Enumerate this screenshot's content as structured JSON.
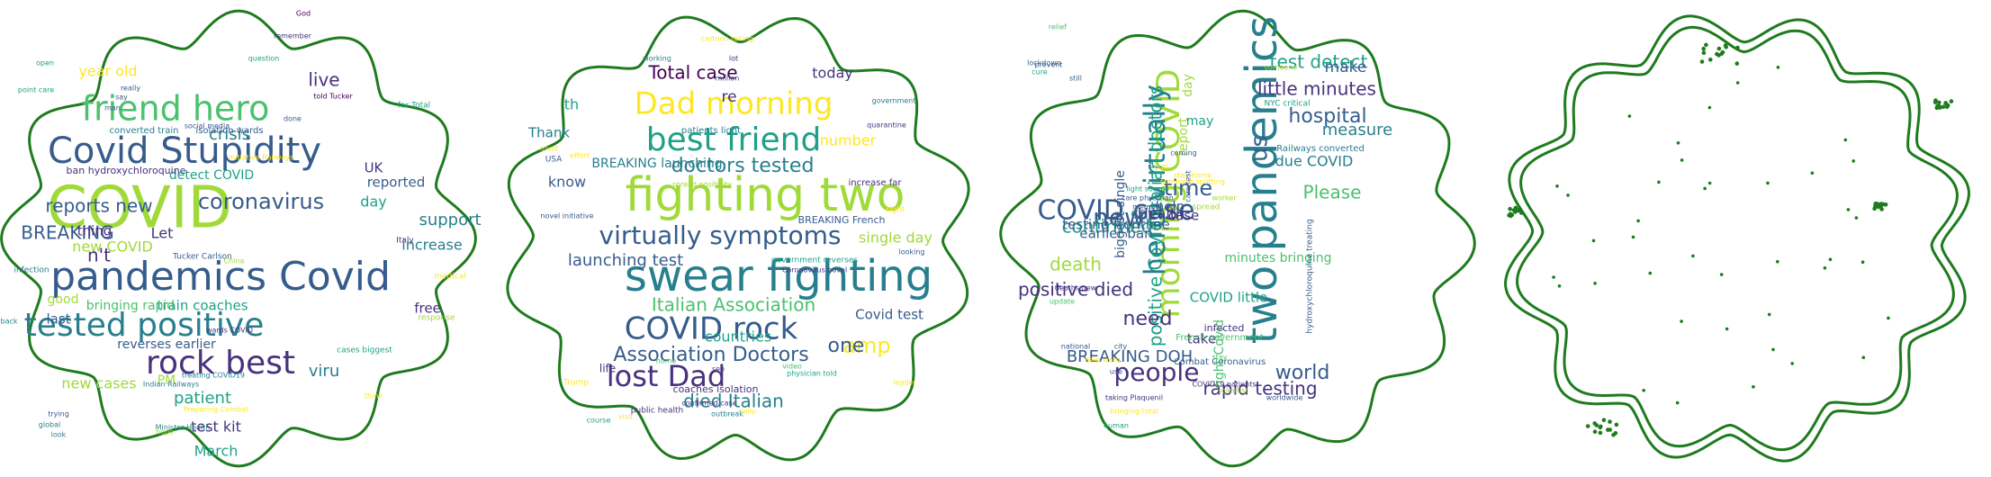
{
  "colors": {
    "outline": "#1e7b1e",
    "dot": "#1e7b1e",
    "palette": [
      "#440154",
      "#46327e",
      "#365c8d",
      "#277f8e",
      "#1fa187",
      "#4ac16d",
      "#a0da39",
      "#fde725"
    ]
  },
  "clouds": [
    {
      "words": [
        {
          "t": "COVID",
          "s": 64,
          "c": 6
        },
        {
          "t": "pandemics Covid",
          "s": 44,
          "c": 2
        },
        {
          "t": "Covid Stupidity",
          "s": 40,
          "c": 2
        },
        {
          "t": "friend hero",
          "s": 38,
          "c": 5
        },
        {
          "t": "tested positive",
          "s": 36,
          "c": 3
        },
        {
          "t": "rock best",
          "s": 36,
          "c": 1
        },
        {
          "t": "coronavirus",
          "s": 24,
          "c": 2
        },
        {
          "t": "BREAKING",
          "s": 20,
          "c": 2
        },
        {
          "t": "reports new",
          "s": 20,
          "c": 2
        },
        {
          "t": "live",
          "s": 20,
          "c": 1
        },
        {
          "t": "crisis",
          "s": 18,
          "c": 3
        },
        {
          "t": "year old",
          "s": 16,
          "c": 7
        },
        {
          "t": "new cases",
          "s": 16,
          "c": 6
        },
        {
          "t": "new COVID",
          "s": 16,
          "c": 6
        },
        {
          "t": "n't",
          "s": 20,
          "c": 1
        },
        {
          "t": "patient",
          "s": 18,
          "c": 4
        },
        {
          "t": "viru",
          "s": 18,
          "c": 3
        },
        {
          "t": "support",
          "s": 18,
          "c": 3
        },
        {
          "t": "increase",
          "s": 16,
          "c": 3
        },
        {
          "t": "train coaches",
          "s": 15,
          "c": 4
        },
        {
          "t": "March",
          "s": 16,
          "c": 4
        },
        {
          "t": "test kit",
          "s": 16,
          "c": 1
        },
        {
          "t": "detect COVID",
          "s": 14,
          "c": 4
        },
        {
          "t": "day",
          "s": 16,
          "c": 4
        },
        {
          "t": "reported",
          "s": 15,
          "c": 2
        },
        {
          "t": "UK",
          "s": 15,
          "c": 1
        },
        {
          "t": "thing",
          "s": 15,
          "c": 1
        },
        {
          "t": "Let",
          "s": 16,
          "c": 1
        },
        {
          "t": "last",
          "s": 15,
          "c": 2
        },
        {
          "t": "good",
          "s": 14,
          "c": 6
        },
        {
          "t": "free",
          "s": 15,
          "c": 1
        },
        {
          "t": "bringing rapid",
          "s": 14,
          "c": 5
        },
        {
          "t": "reverses earlier",
          "s": 14,
          "c": 2
        },
        {
          "t": "PM",
          "s": 14,
          "c": 6
        },
        {
          "t": "ban hydroxychloroquine",
          "s": 11,
          "c": 1
        },
        {
          "t": "converted train",
          "s": 10,
          "c": 3
        },
        {
          "t": "isolation wards",
          "s": 10,
          "c": 2
        },
        {
          "t": "Tucker Carlson",
          "s": 9,
          "c": 2
        },
        {
          "t": "social media",
          "s": 8,
          "c": 2
        },
        {
          "t": "far Total",
          "s": 9,
          "c": 4
        },
        {
          "t": "told Tucker",
          "s": 8,
          "c": 0
        },
        {
          "t": "Indian Railways",
          "s": 8,
          "c": 3
        },
        {
          "t": "cases biggest",
          "s": 9,
          "c": 4
        },
        {
          "t": "response",
          "s": 9,
          "c": 6
        },
        {
          "t": "medical",
          "s": 9,
          "c": 7
        },
        {
          "t": "Italy",
          "s": 9,
          "c": 1
        },
        {
          "t": "infection",
          "s": 9,
          "c": 3
        },
        {
          "t": "China",
          "s": 8,
          "c": 6
        },
        {
          "t": "wards COVID",
          "s": 8,
          "c": 1
        },
        {
          "t": "treating COVID19",
          "s": 8,
          "c": 3
        },
        {
          "t": "Preparing Combat",
          "s": 8,
          "c": 7
        },
        {
          "t": "trying",
          "s": 8,
          "c": 2
        },
        {
          "t": "global",
          "s": 8,
          "c": 3
        },
        {
          "t": "look",
          "s": 8,
          "c": 3
        },
        {
          "t": "Minister Health",
          "s": 8,
          "c": 3
        },
        {
          "t": "hope",
          "s": 8,
          "c": 6
        },
        {
          "t": "think",
          "s": 8,
          "c": 7
        },
        {
          "t": "back",
          "s": 8,
          "c": 3
        },
        {
          "t": "point care",
          "s": 8,
          "c": 4
        },
        {
          "t": "open",
          "s": 8,
          "c": 4
        },
        {
          "t": "really",
          "s": 8,
          "c": 2
        },
        {
          "t": "say",
          "s": 8,
          "c": 2
        },
        {
          "t": "question",
          "s": 8,
          "c": 4
        },
        {
          "t": "remember",
          "s": 8,
          "c": 1
        },
        {
          "t": "God",
          "s": 8,
          "c": 0
        },
        {
          "t": "man",
          "s": 8,
          "c": 2
        },
        {
          "t": "done",
          "s": 8,
          "c": 2
        },
        {
          "t": "Initiative Railways",
          "s": 8,
          "c": 7
        }
      ]
    },
    {
      "words": [
        {
          "t": "swear fighting",
          "s": 48,
          "c": 3
        },
        {
          "t": "fighting two",
          "s": 52,
          "c": 6
        },
        {
          "t": "best friend",
          "s": 36,
          "c": 4
        },
        {
          "t": "Dad morning",
          "s": 34,
          "c": 7
        },
        {
          "t": "COVID rock",
          "s": 34,
          "c": 2
        },
        {
          "t": "lost Dad",
          "s": 32,
          "c": 1
        },
        {
          "t": "virtually symptoms",
          "s": 28,
          "c": 2
        },
        {
          "t": "doctors tested",
          "s": 22,
          "c": 3
        },
        {
          "t": "Association Doctors",
          "s": 22,
          "c": 2
        },
        {
          "t": "Italian Association",
          "s": 20,
          "c": 5
        },
        {
          "t": "Total case",
          "s": 20,
          "c": 0
        },
        {
          "t": "amp",
          "s": 24,
          "c": 7
        },
        {
          "t": "one",
          "s": 22,
          "c": 2
        },
        {
          "t": "died Italian",
          "s": 20,
          "c": 3
        },
        {
          "t": "launching test",
          "s": 18,
          "c": 2
        },
        {
          "t": "today",
          "s": 16,
          "c": 1
        },
        {
          "t": "number",
          "s": 16,
          "c": 7
        },
        {
          "t": "single day",
          "s": 16,
          "c": 6
        },
        {
          "t": "countries",
          "s": 16,
          "c": 4
        },
        {
          "t": "Covid test",
          "s": 15,
          "c": 2
        },
        {
          "t": "BREAKING launching",
          "s": 14,
          "c": 3
        },
        {
          "t": "know",
          "s": 16,
          "c": 2
        },
        {
          "t": "Thank",
          "s": 15,
          "c": 3
        },
        {
          "t": "th",
          "s": 16,
          "c": 4
        },
        {
          "t": "re",
          "s": 17,
          "c": 1
        },
        {
          "t": "life",
          "s": 12,
          "c": 1
        },
        {
          "t": "coaches isolation",
          "s": 11,
          "c": 1
        },
        {
          "t": "BREAKING French",
          "s": 11,
          "c": 2
        },
        {
          "t": "increase far",
          "s": 10,
          "c": 1
        },
        {
          "t": "patients light",
          "s": 10,
          "c": 3
        },
        {
          "t": "government reverses",
          "s": 9,
          "c": 4
        },
        {
          "t": "Coronavirus novel",
          "s": 8,
          "c": 1
        },
        {
          "t": "physician told",
          "s": 8,
          "c": 4
        },
        {
          "t": "confirmed case",
          "s": 8,
          "c": 1
        },
        {
          "t": "public health",
          "s": 9,
          "c": 1
        },
        {
          "t": "novel initiative",
          "s": 8,
          "c": 2
        },
        {
          "t": "spread positivity",
          "s": 8,
          "c": 6
        },
        {
          "t": "Trump",
          "s": 9,
          "c": 7
        },
        {
          "t": "USA",
          "s": 9,
          "c": 2
        },
        {
          "t": "quarantine",
          "s": 8,
          "c": 1
        },
        {
          "t": "government",
          "s": 8,
          "c": 3
        },
        {
          "t": "working",
          "s": 8,
          "c": 3
        },
        {
          "t": "lot",
          "s": 8,
          "c": 1
        },
        {
          "t": "million",
          "s": 8,
          "c": 2
        },
        {
          "t": "cartoon taking",
          "s": 8,
          "c": 7
        },
        {
          "t": "effort",
          "s": 8,
          "c": 7
        },
        {
          "t": "must",
          "s": 8,
          "c": 7
        },
        {
          "t": "right",
          "s": 9,
          "c": 7
        },
        {
          "t": "looking",
          "s": 8,
          "c": 2
        },
        {
          "t": "video",
          "s": 8,
          "c": 5
        },
        {
          "t": "see",
          "s": 8,
          "c": 1
        },
        {
          "t": "home",
          "s": 8,
          "c": 5
        },
        {
          "t": "outbreak",
          "s": 8,
          "c": 3
        },
        {
          "t": "leader",
          "s": 8,
          "c": 7
        },
        {
          "t": "daily",
          "s": 8,
          "c": 7
        },
        {
          "t": "course",
          "s": 8,
          "c": 4
        },
        {
          "t": "visit",
          "s": 8,
          "c": 7
        }
      ]
    },
    {
      "words": [
        {
          "t": "two pandemics",
          "s": 48,
          "c": 3,
          "v": 1
        },
        {
          "t": "morning COVID",
          "s": 36,
          "c": 6,
          "v": 1
        },
        {
          "t": "hero virtually",
          "s": 32,
          "c": 3,
          "v": 1
        },
        {
          "t": "COVID case",
          "s": 30,
          "c": 2
        },
        {
          "t": "people",
          "s": 28,
          "c": 1
        },
        {
          "t": "new",
          "s": 28,
          "c": 2
        },
        {
          "t": "positive Covid Italian doctors",
          "s": 20,
          "c": 4,
          "v": 1
        },
        {
          "t": "rapid testing",
          "s": 20,
          "c": 1
        },
        {
          "t": "world",
          "s": 22,
          "c": 2
        },
        {
          "t": "little minutes",
          "s": 20,
          "c": 1
        },
        {
          "t": "hospital",
          "s": 22,
          "c": 2
        },
        {
          "t": "time",
          "s": 24,
          "c": 2
        },
        {
          "t": "us",
          "s": 26,
          "c": 2,
          "v": 1
        },
        {
          "t": "need",
          "s": 22,
          "c": 1
        },
        {
          "t": "test detect",
          "s": 20,
          "c": 4
        },
        {
          "t": "positive died",
          "s": 20,
          "c": 1
        },
        {
          "t": "death",
          "s": 20,
          "c": 6
        },
        {
          "t": "confirmed",
          "s": 20,
          "c": 4
        },
        {
          "t": "BREAKING DOH",
          "s": 18,
          "c": 2
        },
        {
          "t": "Please",
          "s": 20,
          "c": 5
        },
        {
          "t": "measure",
          "s": 18,
          "c": 3
        },
        {
          "t": "make",
          "s": 17,
          "c": 2
        },
        {
          "t": "due COVID",
          "s": 16,
          "c": 3
        },
        {
          "t": "call",
          "s": 16,
          "c": 3
        },
        {
          "t": "COVID little",
          "s": 15,
          "c": 4
        },
        {
          "t": "Health",
          "s": 16,
          "c": 1
        },
        {
          "t": "testing frontline",
          "s": 15,
          "c": 2
        },
        {
          "t": "case",
          "s": 15,
          "c": 1
        },
        {
          "t": "take",
          "s": 15,
          "c": 1
        },
        {
          "t": "help",
          "s": 15,
          "c": 2
        },
        {
          "t": "earlier ban",
          "s": 15,
          "c": 2
        },
        {
          "t": "minutes bringing",
          "s": 14,
          "c": 5
        },
        {
          "t": "biggest single",
          "s": 14,
          "c": 2,
          "v": 1
        },
        {
          "t": "day",
          "s": 14,
          "c": 6,
          "v": 1
        },
        {
          "t": "may",
          "s": 14,
          "c": 4
        },
        {
          "t": "fight Covid",
          "s": 14,
          "c": 5,
          "v": 1
        },
        {
          "t": "report",
          "s": 14,
          "c": 6,
          "v": 1
        },
        {
          "t": "hydroxychloroquine treating",
          "s": 9,
          "c": 2,
          "v": 1
        },
        {
          "t": "French government",
          "s": 10,
          "c": 5
        },
        {
          "t": "Railways converted",
          "s": 10,
          "c": 3
        },
        {
          "t": "Combat Coronavirus",
          "s": 10,
          "c": 2
        },
        {
          "t": "infected",
          "s": 11,
          "c": 1
        },
        {
          "t": "NYC critical",
          "s": 9,
          "c": 4
        },
        {
          "t": "worldwide",
          "s": 8,
          "c": 2
        },
        {
          "t": "deaths new",
          "s": 8,
          "c": 1
        },
        {
          "t": "taking Plaquenil",
          "s": 8,
          "c": 1
        },
        {
          "t": "bringing total",
          "s": 8,
          "c": 7
        },
        {
          "t": "COVID19 patients",
          "s": 8,
          "c": 1
        },
        {
          "t": "scientist",
          "s": 8,
          "c": 6
        },
        {
          "t": "still",
          "s": 8,
          "c": 2
        },
        {
          "t": "lockdown",
          "s": 8,
          "c": 2
        },
        {
          "t": "cure",
          "s": 8,
          "c": 4
        },
        {
          "t": "prevent",
          "s": 8,
          "c": 2
        },
        {
          "t": "someone",
          "s": 8,
          "c": 6
        },
        {
          "t": "human",
          "s": 8,
          "c": 4
        },
        {
          "t": "national",
          "s": 8,
          "c": 2
        },
        {
          "t": "use",
          "s": 8,
          "c": 2
        },
        {
          "t": "help ward",
          "s": 8,
          "c": 7
        },
        {
          "t": "update",
          "s": 8,
          "c": 5
        },
        {
          "t": "city",
          "s": 8,
          "c": 2
        },
        {
          "t": "coming",
          "s": 8,
          "c": 2
        },
        {
          "t": "relief",
          "s": 8,
          "c": 5
        },
        {
          "t": "stay",
          "s": 8,
          "c": 5
        },
        {
          "t": "spread",
          "s": 9,
          "c": 6
        },
        {
          "t": "light succes",
          "s": 8,
          "c": 4
        },
        {
          "t": "care physician",
          "s": 8,
          "c": 2
        },
        {
          "t": "member",
          "s": 8,
          "c": 2
        },
        {
          "t": "worker",
          "s": 8,
          "c": 6
        },
        {
          "t": "stay home",
          "s": 8,
          "c": 7
        },
        {
          "t": "gun",
          "s": 8,
          "c": 7
        },
        {
          "t": "care test",
          "s": 8,
          "c": 2,
          "v": 1
        },
        {
          "t": "someone spotting",
          "s": 8,
          "c": 7
        }
      ]
    }
  ]
}
